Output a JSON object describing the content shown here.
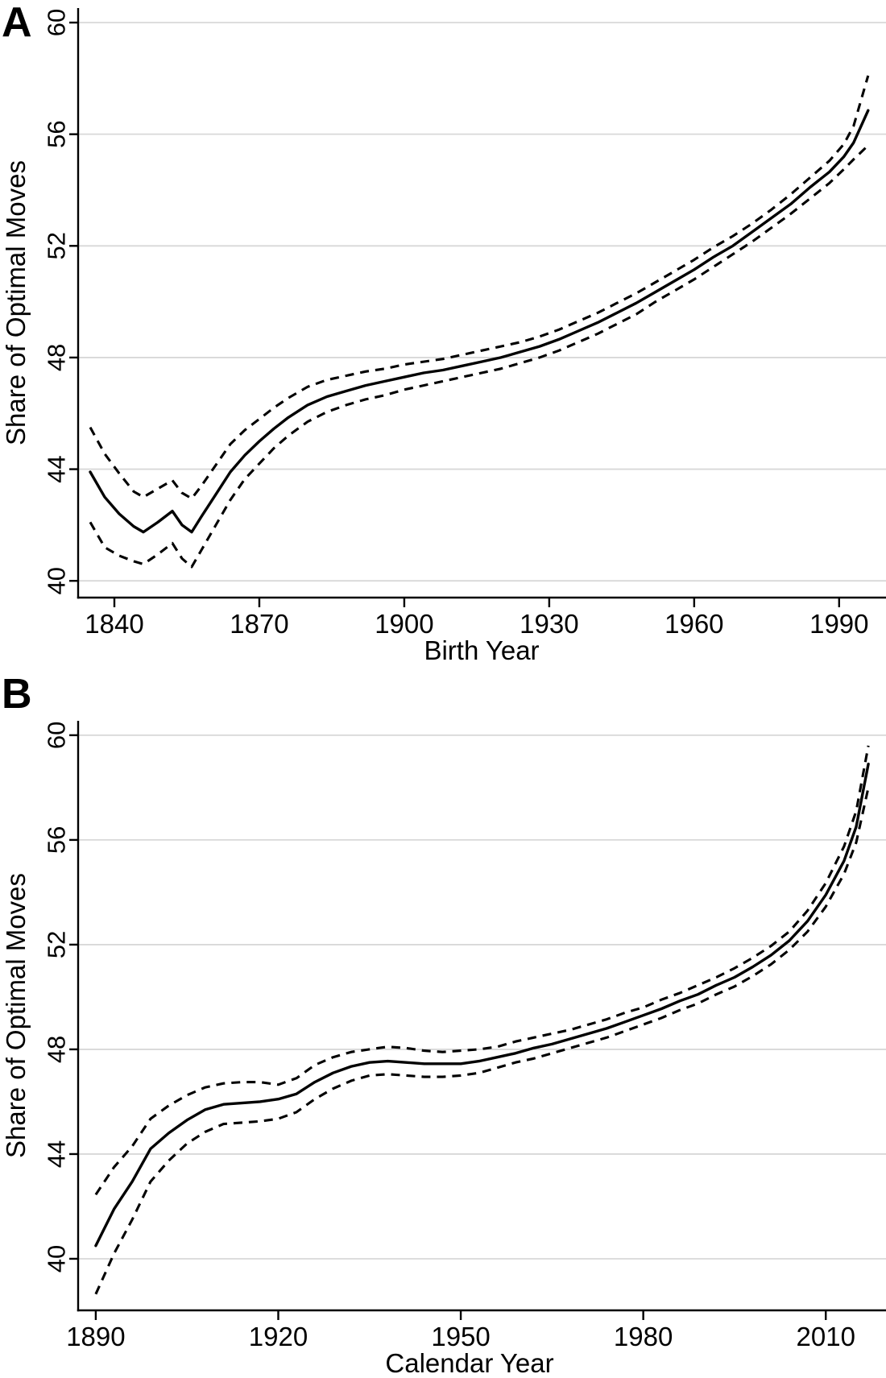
{
  "figure": {
    "background": "#ffffff",
    "line_color": "#000000",
    "grid_color": "#d8d8d8"
  },
  "chart_data": [
    {
      "type": "line",
      "panel_label": "A",
      "xlabel": "Birth Year",
      "ylabel": "Share of Optimal Moves",
      "xlim": [
        1832.5,
        1999.7
      ],
      "ylim": [
        39.4,
        60.52
      ],
      "xticks": [
        1840,
        1870,
        1900,
        1930,
        1960,
        1990
      ],
      "yticks": [
        40,
        44,
        48,
        52,
        56,
        60
      ],
      "grid": "horizontal-only",
      "legend": "none",
      "x": [
        1835,
        1838,
        1841,
        1844,
        1846,
        1849,
        1852,
        1854,
        1856,
        1858,
        1861,
        1864,
        1867,
        1870,
        1873,
        1876,
        1880,
        1884,
        1888,
        1892,
        1896,
        1900,
        1904,
        1908,
        1912,
        1916,
        1920,
        1924,
        1928,
        1932,
        1936,
        1940,
        1944,
        1948,
        1952,
        1956,
        1960,
        1964,
        1968,
        1972,
        1976,
        1980,
        1984,
        1988,
        1991,
        1993,
        1996
      ],
      "series": [
        {
          "name": "share-of-optimal-moves",
          "style": "solid",
          "values": [
            43.9,
            43.0,
            42.4,
            41.95,
            41.75,
            42.1,
            42.5,
            42.0,
            41.75,
            42.3,
            43.1,
            43.9,
            44.5,
            45.0,
            45.45,
            45.85,
            46.3,
            46.6,
            46.8,
            47.0,
            47.15,
            47.3,
            47.45,
            47.55,
            47.7,
            47.85,
            48.0,
            48.2,
            48.4,
            48.65,
            48.95,
            49.25,
            49.6,
            49.95,
            50.35,
            50.75,
            51.15,
            51.6,
            52.0,
            52.5,
            53.0,
            53.5,
            54.1,
            54.65,
            55.2,
            55.7,
            56.85
          ]
        },
        {
          "name": "ci-lower",
          "style": "dashed",
          "values": [
            42.1,
            41.2,
            40.9,
            40.7,
            40.6,
            40.95,
            41.35,
            40.8,
            40.5,
            41.1,
            42.0,
            42.9,
            43.65,
            44.2,
            44.75,
            45.2,
            45.7,
            46.05,
            46.3,
            46.5,
            46.65,
            46.85,
            47.0,
            47.15,
            47.3,
            47.45,
            47.6,
            47.8,
            48.0,
            48.25,
            48.55,
            48.85,
            49.2,
            49.55,
            50.0,
            50.4,
            50.8,
            51.25,
            51.7,
            52.15,
            52.65,
            53.15,
            53.7,
            54.25,
            54.75,
            55.1,
            55.6
          ]
        },
        {
          "name": "ci-upper",
          "style": "dashed",
          "values": [
            45.5,
            44.55,
            43.85,
            43.2,
            43.0,
            43.3,
            43.6,
            43.15,
            42.95,
            43.4,
            44.15,
            44.9,
            45.4,
            45.8,
            46.2,
            46.55,
            46.95,
            47.2,
            47.35,
            47.5,
            47.6,
            47.75,
            47.85,
            47.95,
            48.1,
            48.25,
            48.4,
            48.55,
            48.75,
            49.0,
            49.3,
            49.6,
            49.95,
            50.3,
            50.7,
            51.1,
            51.5,
            51.95,
            52.35,
            52.8,
            53.3,
            53.85,
            54.45,
            55.05,
            55.65,
            56.3,
            58.1
          ]
        }
      ]
    },
    {
      "type": "line",
      "panel_label": "B",
      "xlabel": "Calendar Year",
      "ylabel": "Share of Optimal Moves",
      "xlim": [
        1887.1,
        2019.9
      ],
      "ylim": [
        38.03,
        60.55
      ],
      "xticks": [
        1890,
        1920,
        1950,
        1980,
        2010
      ],
      "yticks": [
        40,
        44,
        48,
        52,
        56,
        60
      ],
      "grid": "horizontal-only",
      "legend": "none",
      "x": [
        1890,
        1893,
        1896,
        1899,
        1902,
        1905,
        1908,
        1911,
        1914,
        1917,
        1920,
        1923,
        1926,
        1929,
        1932,
        1935,
        1938,
        1941,
        1944,
        1947,
        1950,
        1953,
        1956,
        1959,
        1962,
        1965,
        1968,
        1971,
        1974,
        1977,
        1980,
        1983,
        1986,
        1989,
        1992,
        1995,
        1998,
        2001,
        2004,
        2007,
        2010,
        2013,
        2015,
        2017
      ],
      "series": [
        {
          "name": "share-of-optimal-moves",
          "style": "solid",
          "values": [
            40.5,
            41.9,
            42.95,
            44.2,
            44.8,
            45.3,
            45.7,
            45.9,
            45.95,
            46.0,
            46.1,
            46.3,
            46.75,
            47.1,
            47.35,
            47.5,
            47.55,
            47.5,
            47.45,
            47.45,
            47.45,
            47.55,
            47.7,
            47.85,
            48.05,
            48.2,
            48.4,
            48.6,
            48.8,
            49.05,
            49.3,
            49.55,
            49.85,
            50.1,
            50.45,
            50.75,
            51.15,
            51.6,
            52.15,
            52.9,
            53.9,
            55.2,
            56.5,
            58.9
          ]
        },
        {
          "name": "ci-lower",
          "style": "dashed",
          "values": [
            38.65,
            40.2,
            41.5,
            42.95,
            43.75,
            44.4,
            44.85,
            45.15,
            45.2,
            45.25,
            45.35,
            45.6,
            46.1,
            46.5,
            46.8,
            47.0,
            47.05,
            47.0,
            46.95,
            46.95,
            47.0,
            47.1,
            47.3,
            47.5,
            47.65,
            47.85,
            48.05,
            48.25,
            48.45,
            48.7,
            48.95,
            49.2,
            49.5,
            49.75,
            50.1,
            50.4,
            50.8,
            51.25,
            51.8,
            52.5,
            53.45,
            54.7,
            55.9,
            58.0
          ]
        },
        {
          "name": "ci-upper",
          "style": "dashed",
          "values": [
            42.45,
            43.5,
            44.3,
            45.35,
            45.85,
            46.25,
            46.55,
            46.7,
            46.75,
            46.75,
            46.65,
            46.9,
            47.4,
            47.7,
            47.9,
            48.0,
            48.1,
            48.05,
            47.95,
            47.9,
            47.95,
            48.0,
            48.1,
            48.3,
            48.45,
            48.6,
            48.75,
            48.95,
            49.15,
            49.4,
            49.6,
            49.9,
            50.15,
            50.45,
            50.75,
            51.1,
            51.5,
            51.95,
            52.5,
            53.3,
            54.35,
            55.75,
            57.1,
            59.6
          ]
        }
      ]
    }
  ]
}
